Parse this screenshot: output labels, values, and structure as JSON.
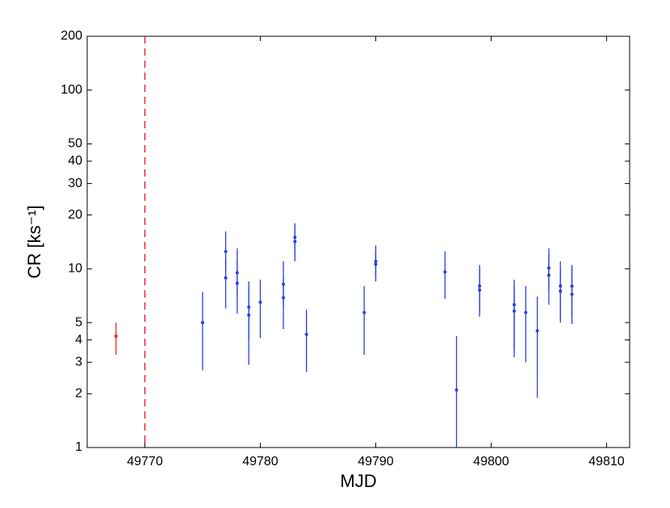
{
  "chart_data": {
    "type": "errorbar",
    "xlabel": "MJD",
    "ylabel": "CR [ks⁻¹]",
    "xlim": [
      49765,
      49812
    ],
    "xticks": [
      49770,
      49780,
      49790,
      49800,
      49810
    ],
    "ylim": [
      1,
      200
    ],
    "yticks": [
      1,
      2,
      3,
      4,
      5,
      10,
      20,
      30,
      40,
      50,
      100,
      200
    ],
    "yscale": "log",
    "vline": {
      "x": 49770,
      "color": "#e8272a"
    },
    "series": [
      {
        "color": "#e8272a",
        "x": [
          49767.5
        ],
        "values": [
          4.2
        ],
        "lower": [
          3.3
        ],
        "upper": [
          5.0
        ]
      },
      {
        "color": "#2a3fe0",
        "x": [
          49775,
          49777,
          49777,
          49778,
          49778,
          49779,
          49779,
          49780,
          49782,
          49782,
          49783,
          49783,
          49784,
          49789,
          49790,
          49790,
          49796,
          49797,
          49799,
          49799,
          49802,
          49802,
          49803,
          49804,
          49805,
          49805,
          49806,
          49806,
          49807,
          49807
        ],
        "values": [
          5.0,
          12.5,
          8.9,
          9.5,
          8.3,
          6.1,
          5.5,
          6.5,
          8.2,
          6.9,
          15,
          14.2,
          4.3,
          5.7,
          11,
          10.6,
          9.6,
          2.1,
          8.0,
          7.6,
          6.3,
          5.8,
          5.7,
          4.5,
          10.1,
          9.2,
          8.0,
          7.5,
          8.0,
          7.2
        ],
        "lower": [
          2.7,
          9.8,
          6.0,
          7.0,
          5.6,
          4.0,
          2.9,
          4.1,
          6.0,
          4.6,
          12,
          11,
          2.65,
          3.3,
          9,
          8.5,
          6.8,
          1,
          5.8,
          5.4,
          3.2,
          3.5,
          3.0,
          1.9,
          7.5,
          6.3,
          5.0,
          5.2,
          5.5,
          4.9
        ],
        "upper": [
          7.4,
          16.2,
          11.5,
          13,
          11,
          8.5,
          8.0,
          8.7,
          11,
          9,
          18,
          17,
          5.9,
          8.0,
          13.5,
          12.5,
          12.5,
          4.2,
          10.5,
          10,
          8.7,
          8.0,
          8.0,
          7.0,
          13,
          12,
          11,
          10,
          10.5,
          10
        ]
      }
    ]
  }
}
